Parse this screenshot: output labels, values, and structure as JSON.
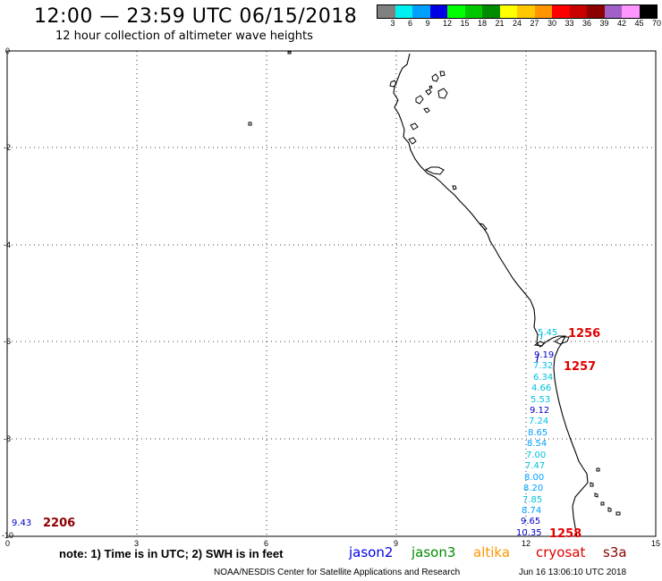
{
  "header": {
    "title": "12:00 — 23:59 UTC 06/15/2018",
    "subtitle": "12 hour collection of altimeter wave heights"
  },
  "legend": {
    "colors": [
      "#808080",
      "#00f0f0",
      "#00a0ff",
      "#0000e6",
      "#00ff00",
      "#00c800",
      "#008c00",
      "#ffff00",
      "#ffc800",
      "#ff9600",
      "#ff0000",
      "#c80000",
      "#8c0000",
      "#a060c8",
      "#ff96ff",
      "#000000"
    ],
    "labels": [
      "3",
      "6",
      "9",
      "12",
      "15",
      "18",
      "21",
      "24",
      "27",
      "30",
      "33",
      "36",
      "39",
      "42",
      "45",
      "70 (ft)"
    ]
  },
  "map": {
    "lat_ticks": [
      "0",
      "-2",
      "-4",
      "-6",
      "-8",
      "-10"
    ],
    "lon_ticks": [
      "0",
      "3",
      "6",
      "9",
      "12",
      "15"
    ]
  },
  "observations": [
    {
      "text": "5.45",
      "color": "#00c0e0"
    },
    {
      "text": "9.19",
      "color": "#0000c8"
    },
    {
      "text": "7.32",
      "color": "#00c0e0"
    },
    {
      "text": "6.34",
      "color": "#00c0e0"
    },
    {
      "text": "4.66",
      "color": "#00c0e0"
    },
    {
      "text": "5.53",
      "color": "#00c0e0"
    },
    {
      "text": "9.12",
      "color": "#0000c8"
    },
    {
      "text": "7.24",
      "color": "#00c0e0"
    },
    {
      "text": "8.65",
      "color": "#00a0ff"
    },
    {
      "text": "8.54",
      "color": "#00a0ff"
    },
    {
      "text": "7.00",
      "color": "#00c0e0"
    },
    {
      "text": "7.47",
      "color": "#00c0e0"
    },
    {
      "text": "8.00",
      "color": "#00a0ff"
    },
    {
      "text": "8.20",
      "color": "#00a0ff"
    },
    {
      "text": "7.85",
      "color": "#00c0e0"
    },
    {
      "text": "8.74",
      "color": "#00a0ff"
    },
    {
      "text": "9.65",
      "color": "#0000c8"
    },
    {
      "text": "10.35",
      "color": "#0000c8"
    },
    {
      "text": "9.43",
      "color": "#0000c8"
    }
  ],
  "passes": [
    {
      "text": "1256",
      "color": "#e00000"
    },
    {
      "text": "1257",
      "color": "#e00000"
    },
    {
      "text": "1258",
      "color": "#e00000"
    },
    {
      "text": "2206",
      "color": "#8c0000"
    }
  ],
  "footer": {
    "note": "note:  1) Time is in UTC;  2) SWH is in feet",
    "satellites": [
      {
        "name": "jason2",
        "color": "#0000e6"
      },
      {
        "name": "jason3",
        "color": "#008c00"
      },
      {
        "name": "altika",
        "color": "#ff9600"
      },
      {
        "name": "cryosat",
        "color": "#e00000"
      },
      {
        "name": "s3a",
        "color": "#8c0000"
      }
    ],
    "credit": "NOAA/NESDIS Center for Satellite Applications and Research",
    "timestamp": "Jun 16 13:06:10 UTC 2018"
  }
}
